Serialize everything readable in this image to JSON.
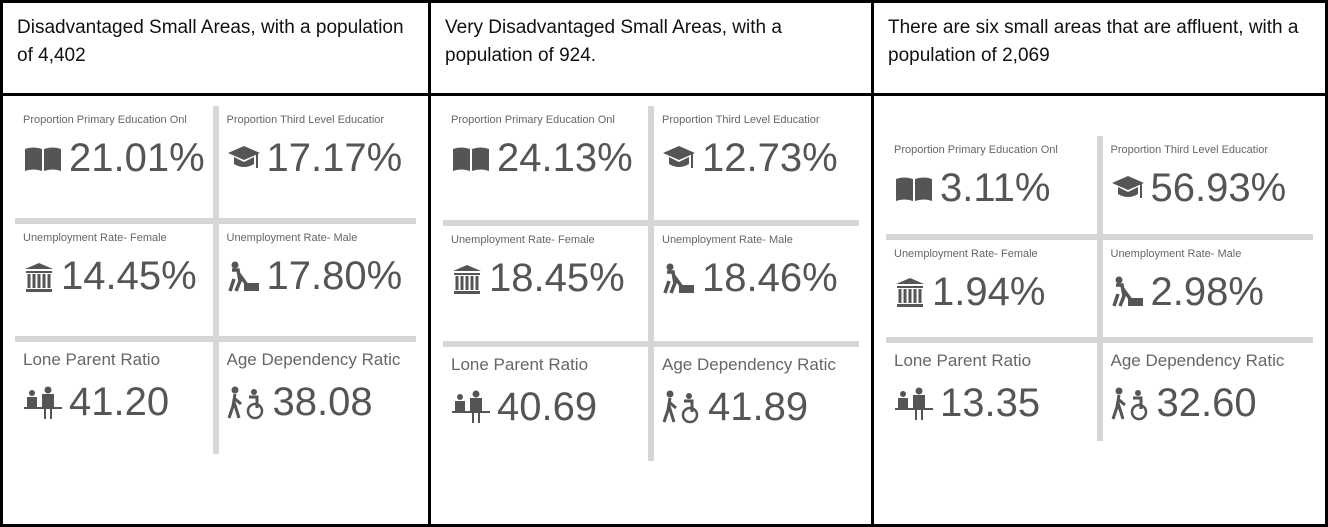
{
  "panels": [
    {
      "header": "Disadvantaged Small Areas, with a population of 4,402",
      "tiles": [
        {
          "label": "Proportion Primary Education Onl",
          "value": "21.01%"
        },
        {
          "label": "Proportion Third Level Educatior",
          "value": "17.17%"
        },
        {
          "label": "Unemployment Rate- Female",
          "value": "14.45%"
        },
        {
          "label": "Unemployment Rate- Male",
          "value": "17.80%"
        },
        {
          "label": "Lone Parent Ratio",
          "value": "41.20"
        },
        {
          "label": "Age Dependency Ratic",
          "value": "38.08"
        }
      ]
    },
    {
      "header": "Very Disadvantaged Small Areas, with a population of 924.",
      "tiles": [
        {
          "label": "Proportion Primary Education Onl",
          "value": "24.13%"
        },
        {
          "label": "Proportion Third Level Educatior",
          "value": "12.73%"
        },
        {
          "label": "Unemployment Rate- Female",
          "value": "18.45%"
        },
        {
          "label": "Unemployment Rate- Male",
          "value": "18.46%"
        },
        {
          "label": "Lone Parent Ratio",
          "value": "40.69"
        },
        {
          "label": "Age Dependency Ratic",
          "value": "41.89"
        }
      ]
    },
    {
      "header": "There are six small areas that are affluent, with a population of 2,069",
      "tiles": [
        {
          "label": "Proportion Primary Education Onl",
          "value": "3.11%"
        },
        {
          "label": "Proportion Third Level Educatior",
          "value": "56.93%"
        },
        {
          "label": "Unemployment Rate- Female",
          "value": "1.94%"
        },
        {
          "label": "Unemployment Rate- Male",
          "value": "2.98%"
        },
        {
          "label": "Lone Parent Ratio",
          "value": "13.35"
        },
        {
          "label": "Age Dependency Ratic",
          "value": "32.60"
        }
      ]
    }
  ]
}
